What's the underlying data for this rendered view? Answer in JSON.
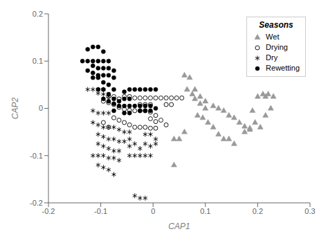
{
  "chart_data": {
    "type": "scatter",
    "xlabel": "CAP1",
    "ylabel": "CAP2",
    "xlim": [
      -0.2,
      0.3
    ],
    "ylim": [
      -0.2,
      0.2
    ],
    "xticks": [
      -0.2,
      -0.1,
      0,
      0.1,
      0.2,
      0.3
    ],
    "yticks": [
      -0.2,
      -0.1,
      0,
      0.1,
      0.2
    ],
    "grid": false,
    "legend": "upper right",
    "legend_title": "Seasons",
    "series": [
      {
        "name": "Wet",
        "color": "#999999",
        "marker": "triangle",
        "x": [
          0.06,
          0.07,
          0.08,
          0.09,
          0.1,
          0.115,
          0.125,
          0.135,
          0.145,
          0.155,
          0.165,
          0.175,
          0.185,
          0.08,
          0.09,
          0.1,
          0.065,
          0.075,
          0.085,
          0.095,
          0.105,
          0.115,
          0.125,
          0.135,
          0.145,
          0.155,
          0.05,
          0.06,
          0.04,
          0.19,
          0.2,
          0.21,
          0.215,
          0.22,
          0.23,
          0.195,
          0.205,
          0.215,
          0.225,
          0.175,
          0.185,
          0.04
        ],
        "values": [
          0.07,
          0.065,
          0.04,
          0.025,
          0.015,
          0.005,
          0.0,
          -0.005,
          -0.015,
          -0.02,
          -0.03,
          -0.038,
          -0.042,
          0.02,
          0.01,
          0.0,
          0.04,
          0.03,
          -0.015,
          -0.02,
          -0.03,
          -0.04,
          -0.055,
          -0.065,
          -0.065,
          -0.075,
          -0.065,
          -0.05,
          -0.065,
          -0.005,
          0.025,
          0.03,
          0.025,
          0.03,
          0.025,
          -0.03,
          -0.04,
          -0.015,
          0.0,
          -0.05,
          -0.045,
          -0.12
        ]
      },
      {
        "name": "Drying",
        "color": "#000000",
        "marker": "hollow_circle",
        "x": [
          -0.085,
          -0.075,
          -0.065,
          -0.055,
          -0.045,
          -0.035,
          -0.025,
          -0.095,
          -0.085,
          -0.075,
          -0.065,
          -0.055,
          -0.045,
          -0.035,
          -0.025,
          -0.015,
          -0.005,
          0.005,
          -0.015,
          -0.005,
          0.005,
          0.015,
          0.025,
          0.035,
          0.045,
          0.055,
          -0.005,
          0.005,
          0.025,
          0.035,
          -0.075,
          -0.065,
          -0.055,
          -0.045,
          -0.035,
          -0.025,
          -0.015,
          -0.005,
          0.005,
          -0.085,
          -0.095,
          0.015,
          0.025,
          -0.025,
          -0.015,
          -0.005
        ],
        "values": [
          0.025,
          0.025,
          0.02,
          0.025,
          0.025,
          0.022,
          0.022,
          0.015,
          0.012,
          0.008,
          0.002,
          -0.002,
          -0.004,
          -0.005,
          -0.005,
          -0.005,
          -0.008,
          -0.015,
          0.022,
          0.022,
          0.022,
          0.022,
          0.022,
          0.022,
          0.022,
          0.022,
          -0.022,
          -0.028,
          0.008,
          0.008,
          -0.02,
          -0.025,
          -0.03,
          -0.035,
          -0.04,
          -0.04,
          -0.04,
          -0.042,
          -0.042,
          -0.04,
          -0.03,
          -0.025,
          -0.035,
          0.008,
          0.008,
          0.008
        ]
      },
      {
        "name": "Dry",
        "color": "#000000",
        "marker": "asterisk",
        "x": [
          -0.115,
          -0.105,
          -0.095,
          -0.085,
          -0.115,
          -0.105,
          -0.095,
          -0.085,
          -0.075,
          -0.065,
          -0.055,
          -0.045,
          -0.105,
          -0.095,
          -0.085,
          -0.075,
          -0.065,
          -0.055,
          -0.045,
          -0.105,
          -0.095,
          -0.085,
          -0.075,
          -0.065,
          -0.115,
          -0.105,
          -0.095,
          -0.085,
          -0.075,
          -0.065,
          -0.105,
          -0.095,
          -0.085,
          -0.075,
          -0.045,
          -0.035,
          -0.025,
          -0.015,
          -0.005,
          -0.035,
          -0.045,
          -0.005,
          -0.025,
          -0.015,
          -0.125,
          -0.115,
          -0.105,
          -0.095,
          -0.105,
          -0.095,
          -0.085,
          -0.035,
          -0.025,
          -0.015,
          0.005,
          0.005,
          -0.015,
          -0.005
        ],
        "values": [
          -0.005,
          -0.01,
          -0.01,
          -0.01,
          -0.03,
          -0.035,
          -0.04,
          -0.04,
          -0.04,
          -0.045,
          -0.05,
          -0.05,
          -0.055,
          -0.06,
          -0.065,
          -0.065,
          -0.07,
          -0.07,
          -0.08,
          -0.075,
          -0.08,
          -0.085,
          -0.09,
          -0.09,
          -0.1,
          -0.1,
          -0.1,
          -0.105,
          -0.105,
          -0.11,
          -0.12,
          -0.125,
          -0.13,
          -0.14,
          -0.1,
          -0.1,
          -0.1,
          -0.1,
          -0.1,
          -0.075,
          -0.065,
          -0.08,
          -0.085,
          -0.075,
          0.04,
          0.04,
          0.04,
          0.04,
          0.032,
          0.03,
          0.025,
          -0.185,
          -0.19,
          -0.19,
          -0.075,
          -0.065,
          -0.055,
          -0.055
        ]
      },
      {
        "name": "Rewetting",
        "color": "#000000",
        "marker": "circle",
        "x": [
          -0.115,
          -0.105,
          -0.095,
          -0.125,
          -0.115,
          -0.105,
          -0.095,
          -0.085,
          -0.135,
          -0.125,
          -0.115,
          -0.105,
          -0.095,
          -0.085,
          -0.075,
          -0.125,
          -0.115,
          -0.105,
          -0.095,
          -0.085,
          -0.075,
          -0.115,
          -0.105,
          -0.095,
          -0.085,
          -0.075,
          -0.105,
          -0.095,
          -0.085,
          -0.075,
          -0.065,
          -0.095,
          -0.085,
          -0.075,
          -0.065,
          -0.055,
          -0.045,
          -0.035,
          -0.025,
          -0.015,
          -0.005,
          -0.055,
          -0.045,
          -0.035,
          -0.025,
          -0.015,
          -0.005,
          0.005,
          -0.075,
          -0.055,
          -0.045,
          -0.055,
          -0.045,
          -0.005,
          0.005,
          -0.025,
          -0.015
        ],
        "values": [
          0.13,
          0.13,
          0.12,
          0.125,
          0.1,
          0.1,
          0.1,
          0.1,
          0.1,
          0.1,
          0.09,
          0.085,
          0.085,
          0.085,
          0.08,
          0.08,
          0.075,
          0.07,
          0.07,
          0.07,
          0.065,
          0.065,
          0.065,
          0.055,
          0.05,
          0.04,
          0.04,
          0.04,
          0.03,
          0.02,
          0.015,
          0.02,
          0.015,
          0.01,
          0.005,
          0.005,
          0.005,
          0.005,
          0.005,
          0.005,
          0.005,
          0.035,
          0.04,
          0.04,
          0.04,
          0.04,
          0.04,
          0.04,
          -0.005,
          -0.01,
          -0.01,
          0.02,
          0.02,
          -0.005,
          0.0,
          -0.005,
          -0.005
        ]
      }
    ]
  }
}
